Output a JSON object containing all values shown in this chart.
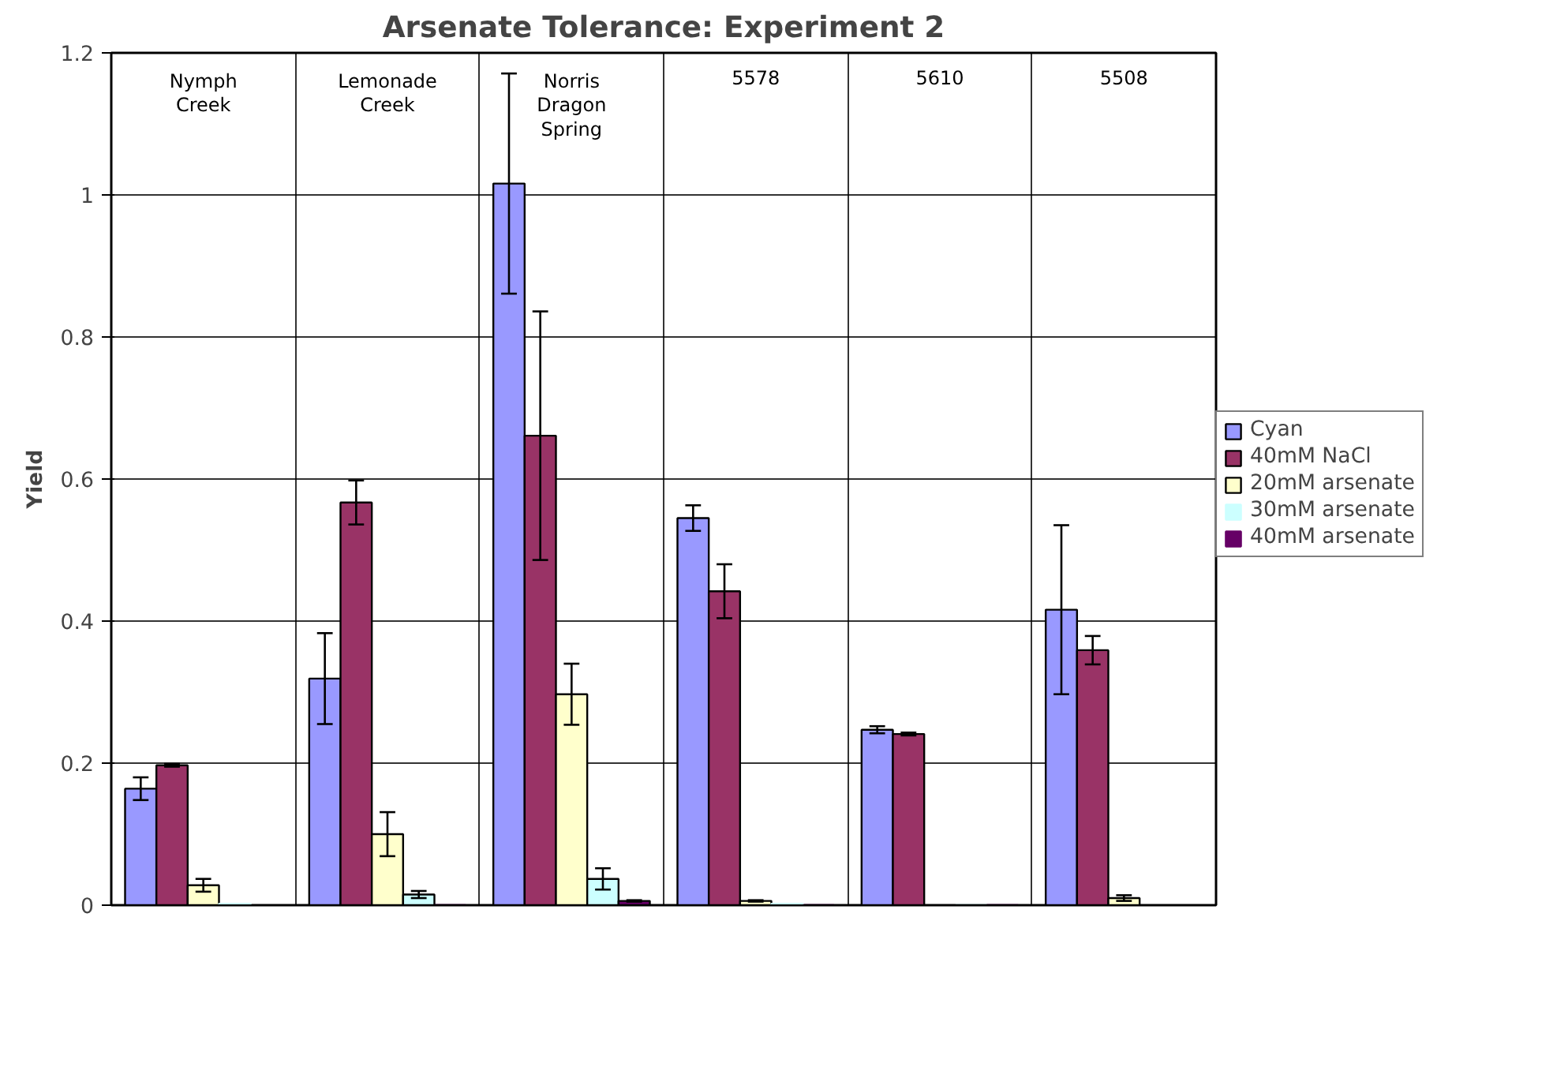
{
  "chart_data": {
    "type": "bar",
    "title": "Arsenate Tolerance: Experiment 2",
    "ylabel": "Yield",
    "categories": [
      "Nymph Creek",
      "Lemonade Creek",
      "Norris Dragon Spring",
      "5578",
      "5610",
      "5508"
    ],
    "series": [
      {
        "name": "Cyan",
        "color": "#9999ff",
        "values": [
          0.164,
          0.319,
          1.016,
          0.545,
          0.247,
          0.416
        ],
        "errors": [
          0.016,
          0.064,
          0.155,
          0.018,
          0.005,
          0.119
        ]
      },
      {
        "name": "40mM NaCl",
        "color": "#993366",
        "values": [
          0.197,
          0.567,
          0.661,
          0.442,
          0.241,
          0.359
        ],
        "errors": [
          0.002,
          0.031,
          0.175,
          0.038,
          0.002,
          0.02
        ]
      },
      {
        "name": "20mM arsenate",
        "color": "#ffffcc",
        "values": [
          0.028,
          0.1,
          0.297,
          0.006,
          null,
          0.01
        ],
        "errors": [
          0.009,
          0.031,
          0.043,
          0.001,
          null,
          0.004
        ]
      },
      {
        "name": "30mM arsenate",
        "color": "#ccffff",
        "values": [
          0.002,
          0.015,
          0.037,
          0.002,
          0,
          null
        ],
        "errors": [
          null,
          0.005,
          0.015,
          null,
          null,
          null
        ]
      },
      {
        "name": "40mM arsenate",
        "color": "#660066",
        "values": [
          null,
          0,
          0.006,
          0,
          0,
          null
        ],
        "errors": [
          null,
          null,
          0.001,
          null,
          null,
          null
        ]
      }
    ],
    "ylim": [
      0,
      1.2
    ],
    "yticks": [
      0,
      0.2,
      0.4,
      0.6,
      0.8,
      1,
      1.2
    ],
    "grid": true,
    "legend": "right"
  }
}
